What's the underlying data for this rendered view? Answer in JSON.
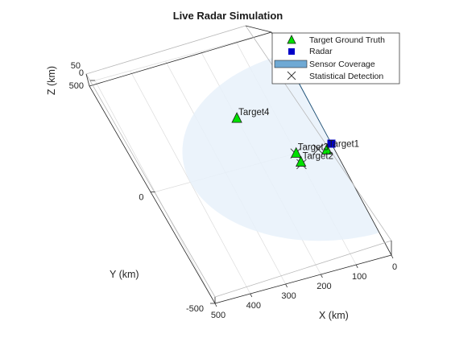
{
  "chart_data": {
    "type": "scatter",
    "title": "Live Radar Simulation",
    "xlabel": "X (km)",
    "ylabel": "Y (km)",
    "zlabel": "Z (km)",
    "xlim": [
      0,
      500
    ],
    "ylim": [
      -500,
      500
    ],
    "zlim": [
      0,
      50
    ],
    "x_ticks": [
      0,
      100,
      200,
      300,
      400,
      500
    ],
    "y_ticks": [
      -500,
      0,
      500
    ],
    "z_ticks": [
      0,
      50
    ],
    "grid": true,
    "legend_position": "top-right",
    "legend": [
      {
        "label": "Target Ground Truth",
        "marker": "triangle",
        "color": "#00e000"
      },
      {
        "label": "Radar",
        "marker": "square",
        "color": "#0000c8"
      },
      {
        "label": "Sensor Coverage",
        "marker": "patch",
        "color": "#6fa9d4"
      },
      {
        "label": "Statistical Detection",
        "marker": "x",
        "color": "#333333"
      }
    ],
    "radar": {
      "x": 0,
      "y": 0,
      "z": 0
    },
    "targets": [
      {
        "label": "Target1",
        "x": 20,
        "y": -20,
        "z": 0
      },
      {
        "label": "Target2",
        "x": 100,
        "y": -40,
        "z": 0
      },
      {
        "label": "Target3",
        "x": 100,
        "y": 0,
        "z": 0
      },
      {
        "label": "Target4",
        "x": 200,
        "y": 200,
        "z": 0
      }
    ],
    "detections": [
      {
        "x": 101,
        "y": -48,
        "z": 0
      },
      {
        "x": 102,
        "y": 0,
        "z": 0
      },
      {
        "x": 40,
        "y": -8,
        "z": 0
      }
    ],
    "coverage": {
      "range_km": 400,
      "azimuth_start_deg": -90,
      "azimuth_end_deg": 90,
      "beam_direction_deg": 90,
      "color": "#6fa9d4",
      "area_color": "#e8f1fa"
    }
  }
}
